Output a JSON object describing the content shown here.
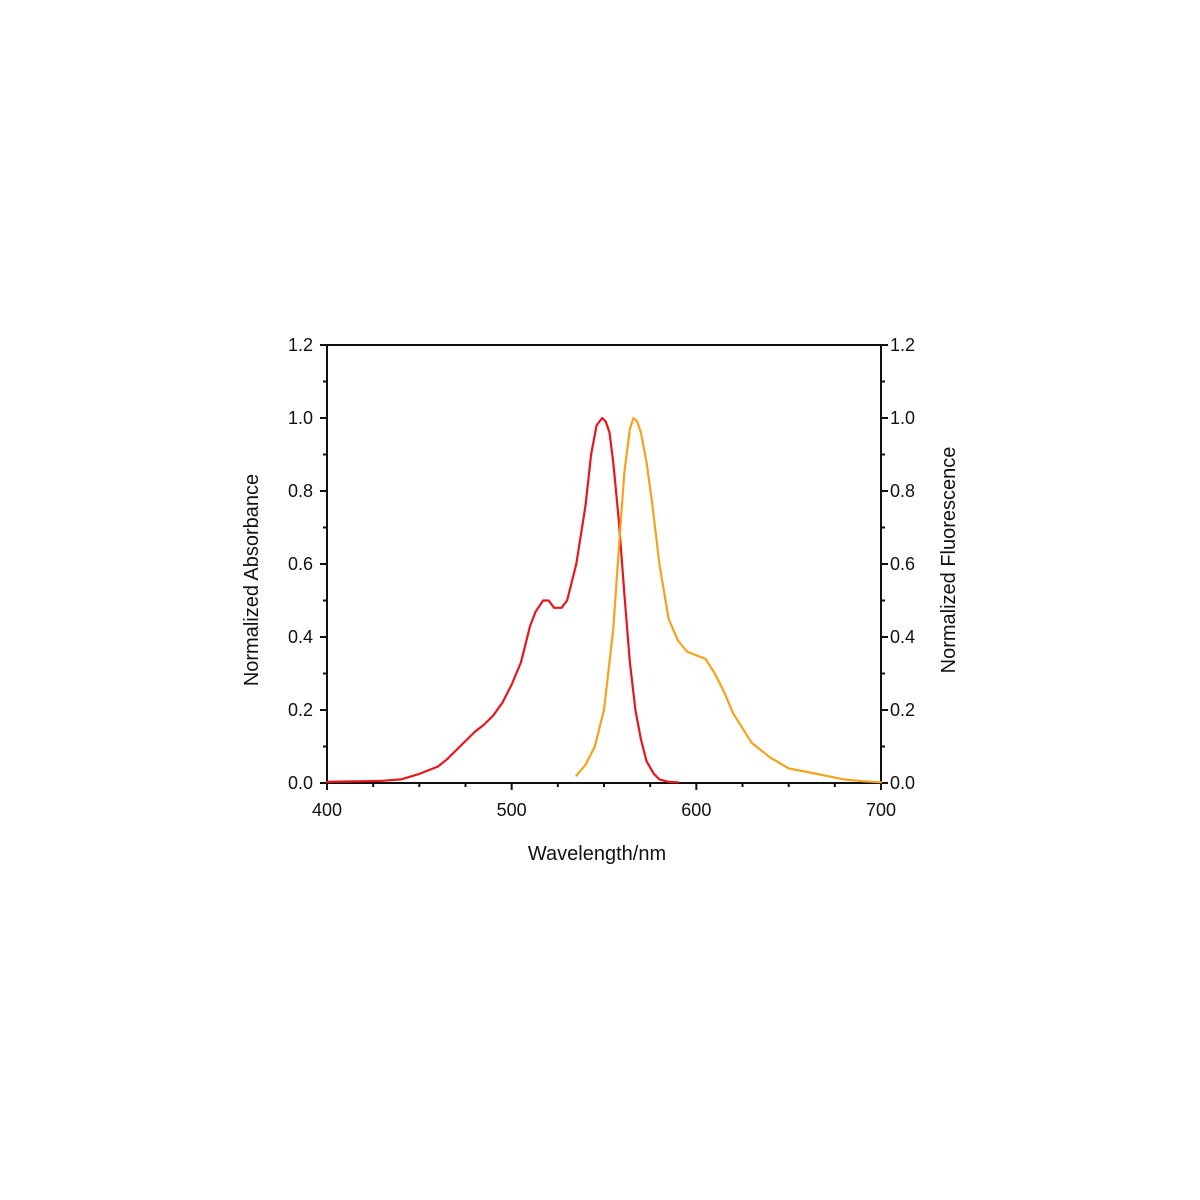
{
  "chart_data": {
    "type": "line",
    "title": "",
    "xlabel": "Wavelength/nm",
    "ylabel_left": "Normalized Absorbance",
    "ylabel_right": "Normalized Fluorescence",
    "xlim": [
      400,
      700
    ],
    "ylim": [
      0,
      1.2
    ],
    "x_ticks": [
      400,
      500,
      600,
      700
    ],
    "x_tick_labels": [
      "400",
      "500",
      "600",
      "700"
    ],
    "y_ticks": [
      0,
      0.2,
      0.4,
      0.6,
      0.8,
      1.0,
      1.2
    ],
    "y_tick_labels": [
      "0.0",
      "0.2",
      "0.4",
      "0.6",
      "0.8",
      "1.0",
      "1.2"
    ],
    "grid": false,
    "legend": "none",
    "series": [
      {
        "axis": "left",
        "color": "#e8161b",
        "x": [
          400,
          410,
          420,
          430,
          440,
          450,
          460,
          465,
          470,
          475,
          480,
          485,
          490,
          495,
          500,
          505,
          510,
          513,
          517,
          520,
          523,
          527,
          530,
          535,
          540,
          543,
          546,
          549,
          551,
          553,
          555,
          558,
          561,
          564,
          567,
          570,
          573,
          577,
          580,
          585,
          590
        ],
        "y": [
          0.003,
          0.004,
          0.005,
          0.006,
          0.01,
          0.025,
          0.045,
          0.065,
          0.09,
          0.115,
          0.14,
          0.16,
          0.185,
          0.22,
          0.27,
          0.33,
          0.43,
          0.47,
          0.5,
          0.5,
          0.48,
          0.48,
          0.5,
          0.6,
          0.76,
          0.9,
          0.98,
          1.0,
          0.99,
          0.96,
          0.88,
          0.72,
          0.52,
          0.33,
          0.2,
          0.12,
          0.06,
          0.025,
          0.01,
          0.003,
          0.002
        ]
      },
      {
        "axis": "right",
        "color": "#f7a21b",
        "x": [
          535,
          540,
          545,
          550,
          555,
          558,
          561,
          564,
          566,
          568,
          570,
          573,
          576,
          580,
          585,
          590,
          595,
          600,
          605,
          610,
          615,
          620,
          630,
          640,
          650,
          660,
          670,
          680,
          690,
          700
        ],
        "y": [
          0.02,
          0.05,
          0.1,
          0.2,
          0.42,
          0.64,
          0.85,
          0.97,
          1.0,
          0.99,
          0.96,
          0.88,
          0.77,
          0.6,
          0.45,
          0.39,
          0.36,
          0.35,
          0.34,
          0.3,
          0.25,
          0.19,
          0.11,
          0.07,
          0.04,
          0.03,
          0.02,
          0.01,
          0.005,
          0.002
        ]
      }
    ]
  }
}
